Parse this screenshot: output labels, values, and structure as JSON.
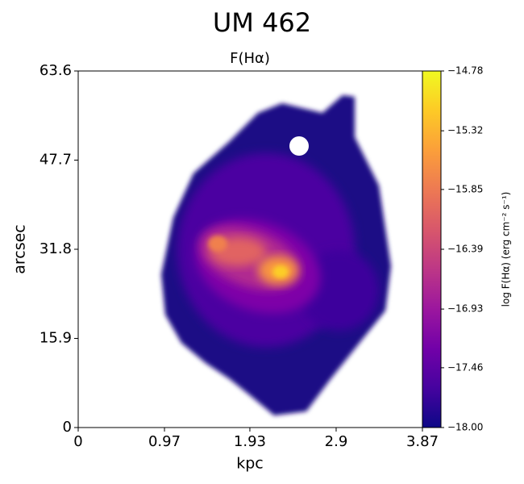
{
  "chart_data": {
    "type": "image",
    "title": "UM 462",
    "subtitle": "F(Hα)",
    "xlabel": "kpc",
    "ylabel": "arcsec",
    "xlim": [
      0,
      3.87
    ],
    "xticks": [
      0,
      0.97,
      1.93,
      2.9,
      3.87
    ],
    "ylim": [
      0,
      63.6
    ],
    "yticks": [
      0,
      15.9,
      31.8,
      47.7,
      63.6
    ],
    "colormap": "plasma",
    "colorbar_label": "log F(Hα) (erg cm⁻² s⁻¹)",
    "clim": [
      -18.0,
      -14.78
    ],
    "cticks": [
      {
        "value": -18.0,
        "label": "−18.00"
      },
      {
        "value": -17.46,
        "label": "−17.46"
      },
      {
        "value": -16.93,
        "label": "−16.93"
      },
      {
        "value": -16.39,
        "label": "−16.39"
      },
      {
        "value": -15.85,
        "label": "−15.85"
      },
      {
        "value": -15.32,
        "label": "−15.32"
      },
      {
        "value": -14.78,
        "label": "−14.78"
      }
    ]
  }
}
